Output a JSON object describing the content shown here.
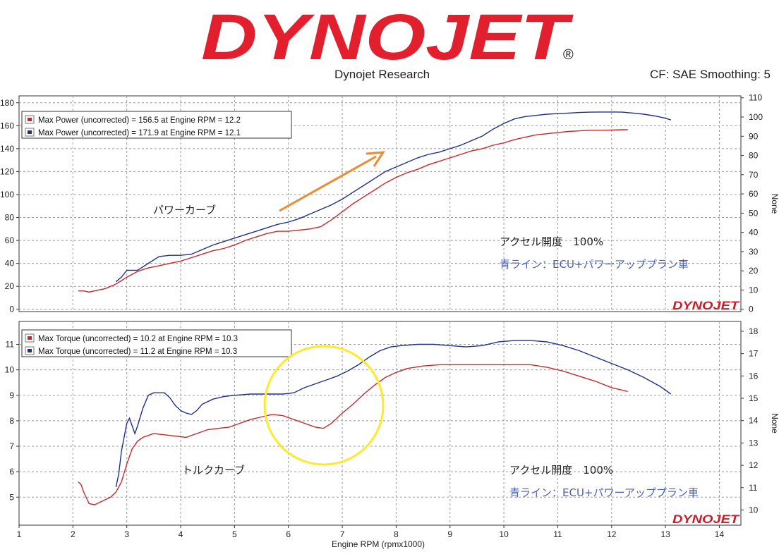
{
  "header": {
    "logo_text": "DYNOJET",
    "center_title": "Dynojet Research",
    "right_info": "CF: SAE Smoothing: 5"
  },
  "colors": {
    "red_run": "#c8282c",
    "blue_run": "#1f2f8c",
    "logo_red": "#e21f2d",
    "arrow": "#f08a30",
    "circle": "#ffe92a",
    "annotation_blue": "#4a63b8"
  },
  "chart_data": [
    {
      "type": "line",
      "title": "",
      "xlabel": "Engine RPM (rpmx1000)",
      "ylabel_left": "",
      "ylabel_right": "None",
      "xlim": [
        1,
        14.4
      ],
      "ylim": [
        -2,
        186
      ],
      "ylim_right": [
        -1.2,
        111
      ],
      "y_ticks": [
        0,
        20,
        40,
        60,
        80,
        100,
        120,
        140,
        160,
        180
      ],
      "y_ticks_right": [
        0,
        10,
        20,
        30,
        40,
        50,
        60,
        70,
        80,
        90,
        100,
        110
      ],
      "grid": true,
      "legend_position": "top-left",
      "watermark": "DYNOJET",
      "annotations": [
        "パワーカーブ",
        "アクセル開度　100%",
        "青ライン：ECU+パワーアッププラン車"
      ],
      "series": [
        {
          "name": "Max Power (uncorrected) = 156.5 at Engine RPM = 12.2",
          "color": "red",
          "x": [
            2.1,
            2.2,
            2.3,
            2.4,
            2.5,
            2.6,
            2.7,
            2.8,
            2.9,
            3.0,
            3.2,
            3.4,
            3.6,
            3.8,
            4.0,
            4.2,
            4.4,
            4.6,
            4.8,
            5.0,
            5.2,
            5.4,
            5.6,
            5.8,
            6.0,
            6.2,
            6.4,
            6.6,
            6.8,
            7.0,
            7.2,
            7.4,
            7.6,
            7.8,
            8.0,
            8.2,
            8.4,
            8.6,
            8.8,
            9.0,
            9.2,
            9.4,
            9.6,
            9.8,
            10.0,
            10.2,
            10.4,
            10.6,
            10.8,
            11.0,
            11.2,
            11.4,
            11.6,
            11.8,
            12.0,
            12.2,
            12.3
          ],
          "y": [
            16,
            16,
            15,
            16,
            17,
            18,
            20,
            22,
            25,
            28,
            33,
            36,
            38,
            40,
            42,
            45,
            48,
            51,
            53,
            56,
            60,
            63,
            66,
            68,
            68,
            69,
            70,
            72,
            78,
            85,
            92,
            98,
            104,
            110,
            115,
            119,
            122,
            126,
            129,
            132,
            135,
            138,
            140,
            143,
            145,
            148,
            150,
            152,
            153,
            154,
            155,
            155.5,
            156,
            156,
            156.2,
            156.5,
            156.5
          ]
        },
        {
          "name": "Max Power (uncorrected) = 171.9 at Engine RPM = 12.1",
          "color": "blue",
          "x": [
            2.8,
            2.9,
            3.0,
            3.1,
            3.2,
            3.4,
            3.6,
            3.8,
            4.0,
            4.2,
            4.4,
            4.6,
            4.8,
            5.0,
            5.2,
            5.4,
            5.6,
            5.8,
            6.0,
            6.2,
            6.4,
            6.6,
            6.8,
            7.0,
            7.2,
            7.4,
            7.6,
            7.8,
            8.0,
            8.2,
            8.4,
            8.6,
            8.8,
            9.0,
            9.2,
            9.4,
            9.6,
            9.8,
            10.0,
            10.2,
            10.4,
            10.6,
            10.8,
            11.0,
            11.2,
            11.4,
            11.6,
            11.8,
            12.0,
            12.1,
            12.2,
            12.4,
            12.6,
            12.8,
            13.0,
            13.1
          ],
          "y": [
            24,
            28,
            34,
            34,
            34,
            40,
            46,
            47,
            47,
            48,
            52,
            56,
            59,
            62,
            65,
            68,
            71,
            74,
            76,
            79,
            83,
            87,
            91,
            96,
            102,
            108,
            114,
            120,
            124,
            128,
            132,
            135,
            137,
            140,
            143,
            147,
            151,
            157,
            162,
            166,
            168,
            169,
            170,
            170.5,
            171,
            171.5,
            171.8,
            171.9,
            171.9,
            171.9,
            171.8,
            171,
            170,
            168.5,
            166.5,
            165
          ]
        }
      ]
    },
    {
      "type": "line",
      "title": "",
      "xlabel": "Engine RPM (rpmx1000)",
      "ylabel_left": "",
      "ylabel_right": "None",
      "xlim": [
        1,
        14.4
      ],
      "ylim": [
        3.9,
        11.9
      ],
      "ylim_right": [
        9.32,
        18.44
      ],
      "x_ticks": [
        1,
        2,
        3,
        4,
        5,
        6,
        7,
        8,
        9,
        10,
        11,
        12,
        13,
        14
      ],
      "y_ticks": [
        5,
        6,
        7,
        8,
        9,
        10,
        11
      ],
      "y_ticks_right": [
        10,
        11,
        12,
        13,
        14,
        15,
        16,
        17,
        18
      ],
      "grid": true,
      "legend_position": "top-left",
      "watermark": "DYNOJET",
      "annotations": [
        "トルクカーブ",
        "アクセル開度　100%",
        "青ライン：ECU+パワーアッププラン車"
      ],
      "series": [
        {
          "name": "Max Torque (uncorrected) = 10.2 at Engine RPM = 10.3",
          "color": "red",
          "x": [
            2.1,
            2.15,
            2.2,
            2.3,
            2.4,
            2.5,
            2.6,
            2.7,
            2.8,
            2.9,
            3.0,
            3.1,
            3.2,
            3.3,
            3.5,
            3.7,
            3.9,
            4.1,
            4.3,
            4.5,
            4.7,
            4.9,
            5.1,
            5.3,
            5.5,
            5.7,
            5.9,
            6.1,
            6.3,
            6.5,
            6.65,
            6.8,
            7.0,
            7.2,
            7.4,
            7.6,
            7.8,
            8.0,
            8.2,
            8.5,
            8.8,
            9.0,
            9.3,
            9.6,
            9.9,
            10.2,
            10.5,
            10.8,
            11.1,
            11.4,
            11.7,
            12.0,
            12.3
          ],
          "y": [
            5.6,
            5.5,
            5.2,
            4.75,
            4.7,
            4.8,
            4.9,
            5.0,
            5.2,
            5.6,
            6.3,
            6.9,
            7.2,
            7.35,
            7.5,
            7.45,
            7.4,
            7.35,
            7.5,
            7.65,
            7.7,
            7.75,
            7.9,
            8.05,
            8.15,
            8.25,
            8.2,
            8.05,
            7.9,
            7.75,
            7.7,
            7.9,
            8.3,
            8.65,
            9.05,
            9.4,
            9.7,
            9.9,
            10.05,
            10.15,
            10.2,
            10.2,
            10.2,
            10.2,
            10.2,
            10.2,
            10.2,
            10.1,
            9.95,
            9.75,
            9.55,
            9.3,
            9.15
          ]
        },
        {
          "name": "Max Torque (uncorrected) = 11.2 at Engine RPM = 10.3",
          "color": "blue",
          "x": [
            2.8,
            2.85,
            2.9,
            3.0,
            3.05,
            3.1,
            3.15,
            3.2,
            3.3,
            3.4,
            3.5,
            3.7,
            3.8,
            3.9,
            4.0,
            4.1,
            4.2,
            4.3,
            4.4,
            4.6,
            4.8,
            5.0,
            5.3,
            5.6,
            5.9,
            6.1,
            6.3,
            6.5,
            6.7,
            6.9,
            7.1,
            7.3,
            7.5,
            7.7,
            7.9,
            8.1,
            8.4,
            8.7,
            9.0,
            9.3,
            9.6,
            9.9,
            10.2,
            10.5,
            10.8,
            11.1,
            11.4,
            11.7,
            12.0,
            12.3,
            12.6,
            12.9,
            13.1
          ],
          "y": [
            5.4,
            5.9,
            6.8,
            7.9,
            8.1,
            7.8,
            7.5,
            7.8,
            8.5,
            9.0,
            9.1,
            9.1,
            8.9,
            8.6,
            8.4,
            8.3,
            8.25,
            8.4,
            8.65,
            8.85,
            8.95,
            9.0,
            9.05,
            9.05,
            9.05,
            9.1,
            9.3,
            9.45,
            9.6,
            9.75,
            9.95,
            10.2,
            10.5,
            10.75,
            10.9,
            10.95,
            11.0,
            11.0,
            10.95,
            10.9,
            10.95,
            11.1,
            11.15,
            11.15,
            11.1,
            10.95,
            10.75,
            10.5,
            10.25,
            10.0,
            9.7,
            9.35,
            9.05
          ]
        }
      ]
    }
  ]
}
